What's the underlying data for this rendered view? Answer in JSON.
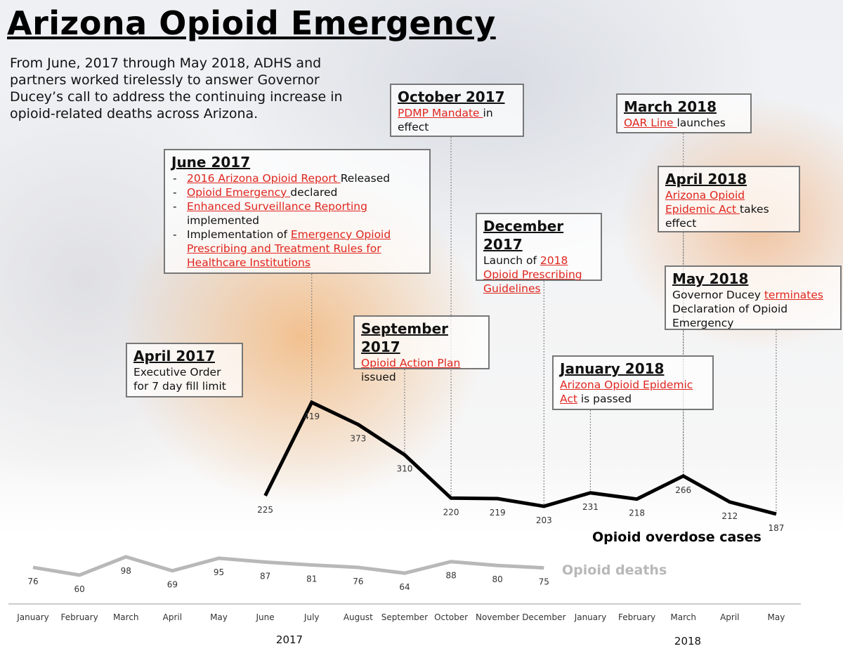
{
  "chart_data": {
    "type": "line",
    "title": "Arizona Opioid Emergency",
    "subtitle": "From June, 2017 through May 2018, ADHS and partners worked tirelessly to answer Governor Ducey’s call to address the continuing increase in opioid-related deaths across Arizona.",
    "categories": [
      "January",
      "February",
      "March",
      "April",
      "May",
      "June",
      "July",
      "August",
      "September",
      "October",
      "November",
      "December",
      "January",
      "February",
      "March",
      "April",
      "May"
    ],
    "year_labels": [
      "2017",
      "2018"
    ],
    "series": [
      {
        "name": "Opioid overdose cases",
        "color": "#000000",
        "values": [
          null,
          null,
          null,
          null,
          null,
          225,
          419,
          373,
          310,
          220,
          219,
          203,
          231,
          218,
          266,
          212,
          187
        ]
      },
      {
        "name": "Opioid deaths",
        "color": "#b8b8b8",
        "values": [
          76,
          60,
          98,
          69,
          95,
          87,
          81,
          76,
          64,
          88,
          80,
          75,
          null,
          null,
          null,
          null,
          null
        ]
      }
    ],
    "ylim": [
      0,
      500
    ],
    "link_color": "#e0261f",
    "annotations": [
      {
        "title": "April 2017",
        "body": [
          {
            "text": "Executive Order for 7 day fill limit"
          }
        ]
      },
      {
        "title": "June 2017",
        "items": [
          [
            {
              "text": "2016 Arizona Opioid Report ",
              "link": true
            },
            {
              "text": "Released"
            }
          ],
          [
            {
              "text": "Opioid Emergency ",
              "link": true
            },
            {
              "text": "declared"
            }
          ],
          [
            {
              "text": "Enhanced Surveillance Reporting",
              "link": true
            },
            {
              "text": " implemented"
            }
          ],
          [
            {
              "text": "Implementation of "
            },
            {
              "text": "Emergency Opioid Prescribing and Treatment Rules for Healthcare Institutions",
              "link": true
            }
          ]
        ]
      },
      {
        "title": "September 2017",
        "body": [
          {
            "text": "Opioid Action Plan",
            "link": true
          },
          {
            "text": " issued"
          }
        ]
      },
      {
        "title": "October 2017",
        "body": [
          {
            "text": "PDMP Mandate ",
            "link": true
          },
          {
            "text": "in effect"
          }
        ]
      },
      {
        "title": "December 2017",
        "body": [
          {
            "text": "Launch of "
          },
          {
            "text": "2018 Opioid Prescribing Guidelines",
            "link": true
          }
        ]
      },
      {
        "title": "January 2018",
        "body": [
          {
            "text": "Arizona Opioid Epidemic Act",
            "link": true
          },
          {
            "text": " is passed"
          }
        ]
      },
      {
        "title": "March 2018",
        "body": [
          {
            "text": "OAR Line ",
            "link": true
          },
          {
            "text": "launches"
          }
        ]
      },
      {
        "title": "April 2018",
        "body": [
          {
            "text": "Arizona Opioid Epidemic Act ",
            "link": true
          },
          {
            "text": "takes effect"
          }
        ]
      },
      {
        "title": "May 2018",
        "body": [
          {
            "text": "Governor Ducey "
          },
          {
            "text": "terminates",
            "link": true
          },
          {
            "text": " Declaration of Opioid Emergency"
          }
        ]
      }
    ]
  }
}
